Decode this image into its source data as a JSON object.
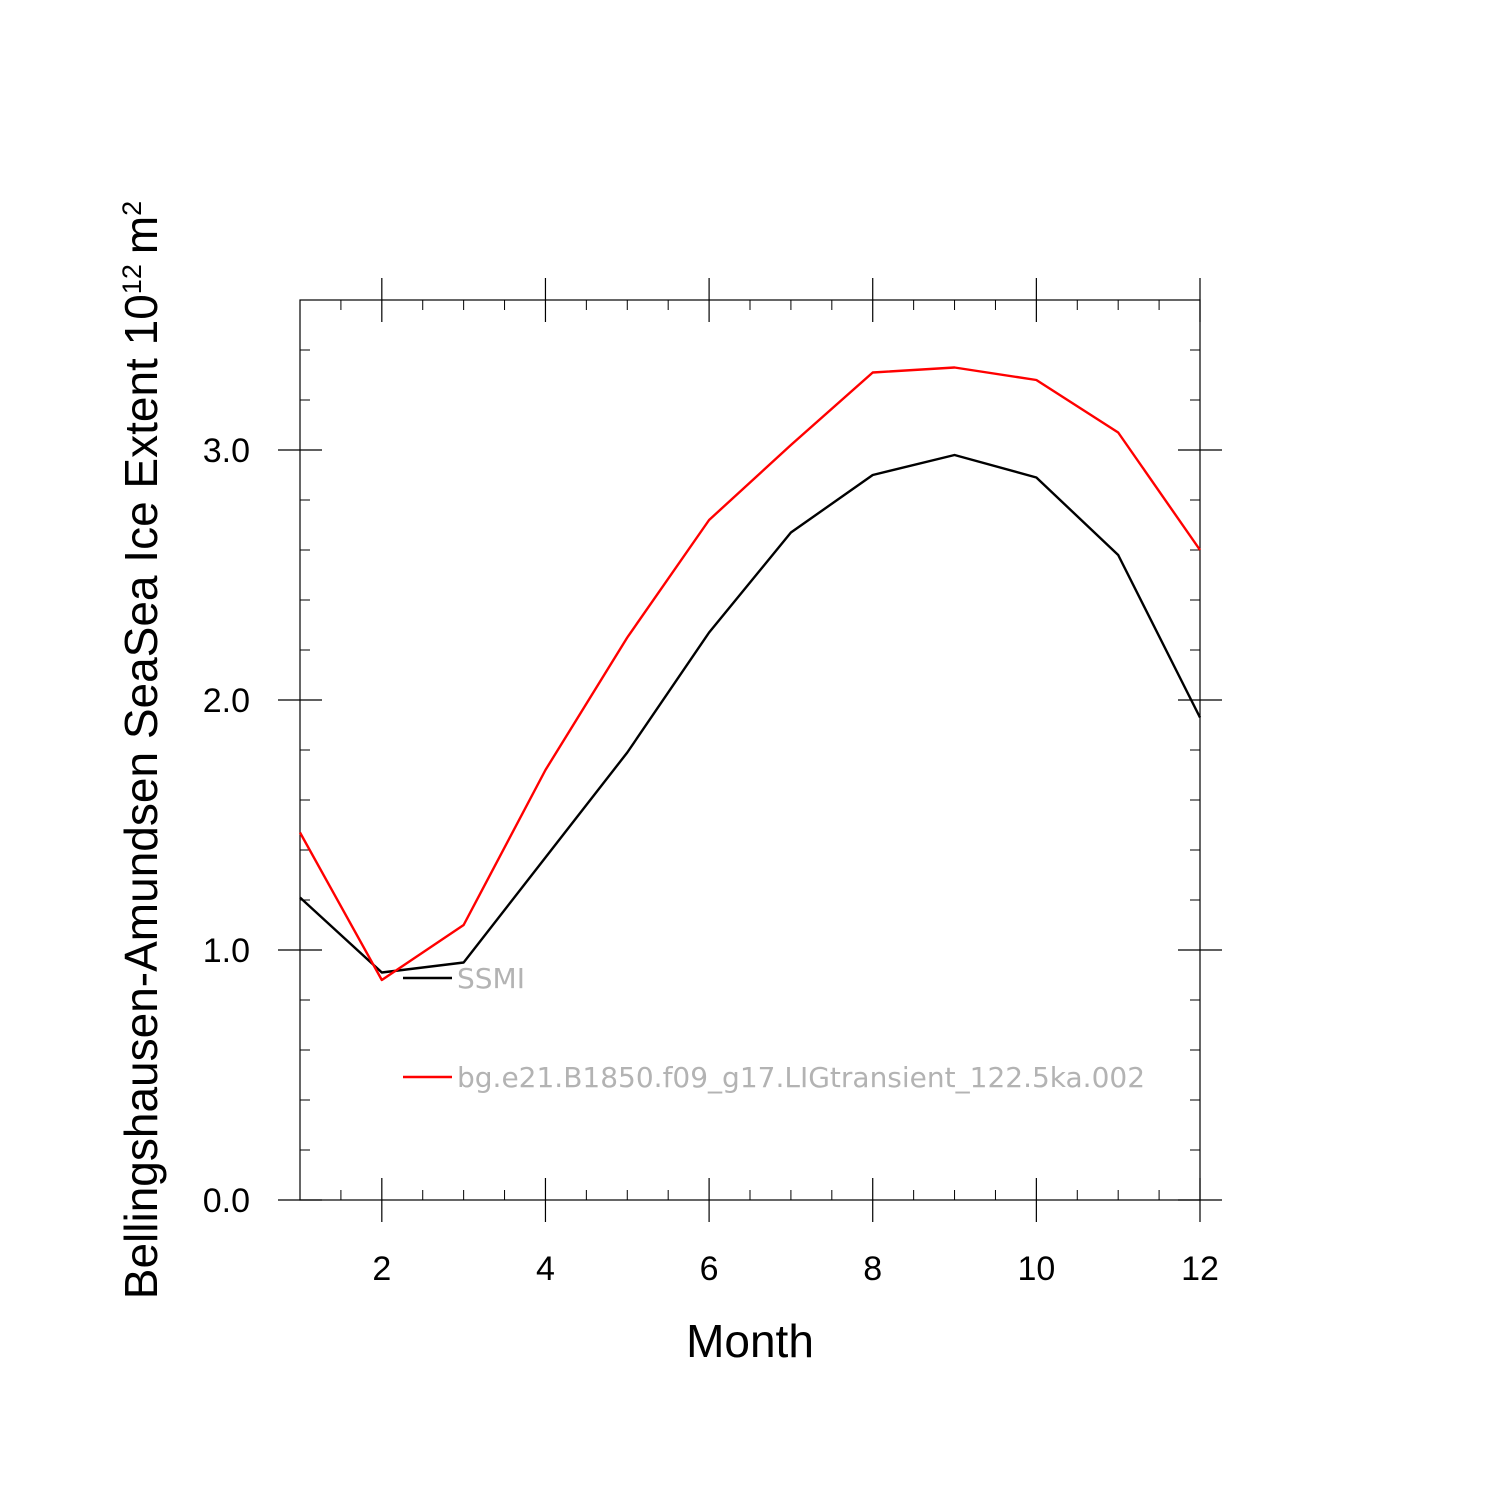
{
  "chart_data": {
    "type": "line",
    "title": "",
    "xlabel": "Month",
    "ylabel_main": "Bellingshausen-Amundsen SeaSea Ice Extent 10",
    "ylabel_exponent": "12",
    "ylabel_unit": "m",
    "ylabel_unit_exponent": "2",
    "xlim": [
      1,
      12
    ],
    "ylim": [
      0.0,
      3.6
    ],
    "x_ticks": [
      2,
      4,
      6,
      8,
      10,
      12
    ],
    "x_tick_labels": [
      "2",
      "4",
      "6",
      "8",
      "10",
      "12"
    ],
    "y_ticks": [
      0.0,
      1.0,
      2.0,
      3.0
    ],
    "y_tick_labels": [
      "0.0",
      "1.0",
      "2.0",
      "3.0"
    ],
    "grid": false,
    "legend_position": "inside-lower-left",
    "x": [
      1,
      2,
      3,
      4,
      5,
      6,
      7,
      8,
      9,
      10,
      11,
      12
    ],
    "series": [
      {
        "name": "SSMI",
        "color": "#000000",
        "values": [
          1.21,
          0.91,
          0.95,
          1.37,
          1.79,
          2.27,
          2.67,
          2.9,
          2.98,
          2.89,
          2.58,
          1.93
        ]
      },
      {
        "name": "bg.e21.B1850.f09_g17.LIGtransient_122.5ka.002",
        "color": "#ff0000",
        "values": [
          1.47,
          0.88,
          1.1,
          1.72,
          2.25,
          2.72,
          3.02,
          3.31,
          3.33,
          3.28,
          3.07,
          2.6
        ]
      }
    ]
  }
}
